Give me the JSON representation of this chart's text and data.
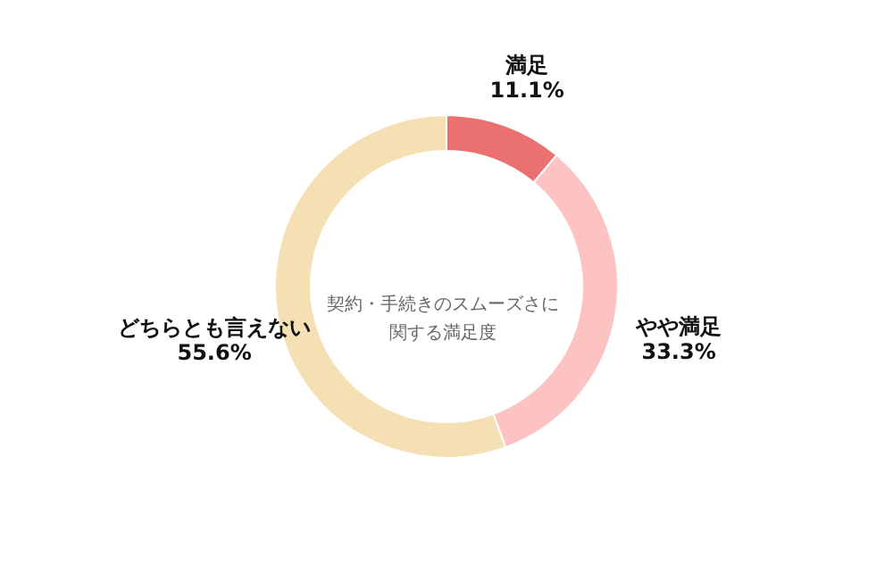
{
  "chart_data": {
    "type": "donut",
    "title": "契約・手続きのスムーズさに関する満足度",
    "categories": [
      "満足",
      "やや満足",
      "どちらとも言えない"
    ],
    "values": [
      11.1,
      33.3,
      55.6
    ],
    "value_labels": [
      "11.1%",
      "33.3%",
      "55.6%"
    ],
    "colors": [
      "#eb7070",
      "#fdc3c3",
      "#f5e0b3"
    ]
  }
}
